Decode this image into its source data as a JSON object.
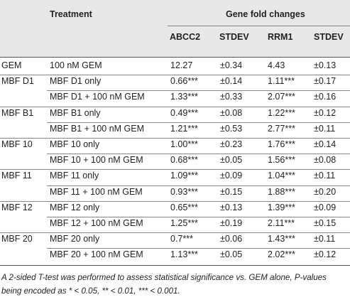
{
  "header": {
    "treatment_label": "Treatment",
    "gene_fold_label": "Gene fold changes",
    "columns": [
      "ABCC2",
      "STDEV",
      "RRM1",
      "STDEV"
    ]
  },
  "rows": [
    {
      "group": "GEM",
      "treatment": "100 nM GEM",
      "abcc2": "12.27",
      "sd1": "±0.34",
      "rrm1": "4.43",
      "sd2": "±0.13"
    },
    {
      "group": "MBF D1",
      "treatment": "MBF D1 only",
      "abcc2": "0.66***",
      "sd1": "±0.14",
      "rrm1": "1.11***",
      "sd2": "±0.17"
    },
    {
      "group": "",
      "treatment": "MBF D1 + 100 nM GEM",
      "abcc2": "1.33***",
      "sd1": "±0.33",
      "rrm1": "2.07***",
      "sd2": "±0.16"
    },
    {
      "group": "MBF B1",
      "treatment": "MBF B1 only",
      "abcc2": "0.49***",
      "sd1": "±0.08",
      "rrm1": "1.22***",
      "sd2": "±0.12"
    },
    {
      "group": "",
      "treatment": "MBF B1 + 100 nM GEM",
      "abcc2": "1.21***",
      "sd1": "±0.53",
      "rrm1": "2.77***",
      "sd2": "±0.11"
    },
    {
      "group": "MBF 10",
      "treatment": "MBF 10 only",
      "abcc2": "1.00***",
      "sd1": "±0.23",
      "rrm1": "1.76***",
      "sd2": "±0.14"
    },
    {
      "group": "",
      "treatment": "MBF 10 + 100 nM GEM",
      "abcc2": "0.68***",
      "sd1": "±0.05",
      "rrm1": "1.56***",
      "sd2": "±0.08"
    },
    {
      "group": "MBF 11",
      "treatment": "MBF 11 only",
      "abcc2": "1.09***",
      "sd1": "±0.09",
      "rrm1": "1.04***",
      "sd2": "±0.11"
    },
    {
      "group": "",
      "treatment": "MBF 11 + 100 nM GEM",
      "abcc2": "0.93***",
      "sd1": "±0.15",
      "rrm1": "1.88***",
      "sd2": "±0.20"
    },
    {
      "group": "MBF 12",
      "treatment": "MBF 12 only",
      "abcc2": "0.65***",
      "sd1": "±0.13",
      "rrm1": "1.39***",
      "sd2": "±0.09"
    },
    {
      "group": "",
      "treatment": "MBF 12 + 100 nM GEM",
      "abcc2": "1.25***",
      "sd1": "±0.19",
      "rrm1": "2.11***",
      "sd2": "±0.15"
    },
    {
      "group": "MBF 20",
      "treatment": "MBF 20 only",
      "abcc2": "0.7***",
      "sd1": "±0.06",
      "rrm1": "1.43***",
      "sd2": "±0.11"
    },
    {
      "group": "",
      "treatment": "MBF 20 + 100 nM GEM",
      "abcc2": "1.13***",
      "sd1": "±0.05",
      "rrm1": "2.02***",
      "sd2": "±0.12"
    }
  ],
  "footnote": "A 2-sided T-test was performed to assess statistical significance vs. GEM alone, P-values being encoded as * < 0.05, ** < 0.01, *** < 0.001."
}
